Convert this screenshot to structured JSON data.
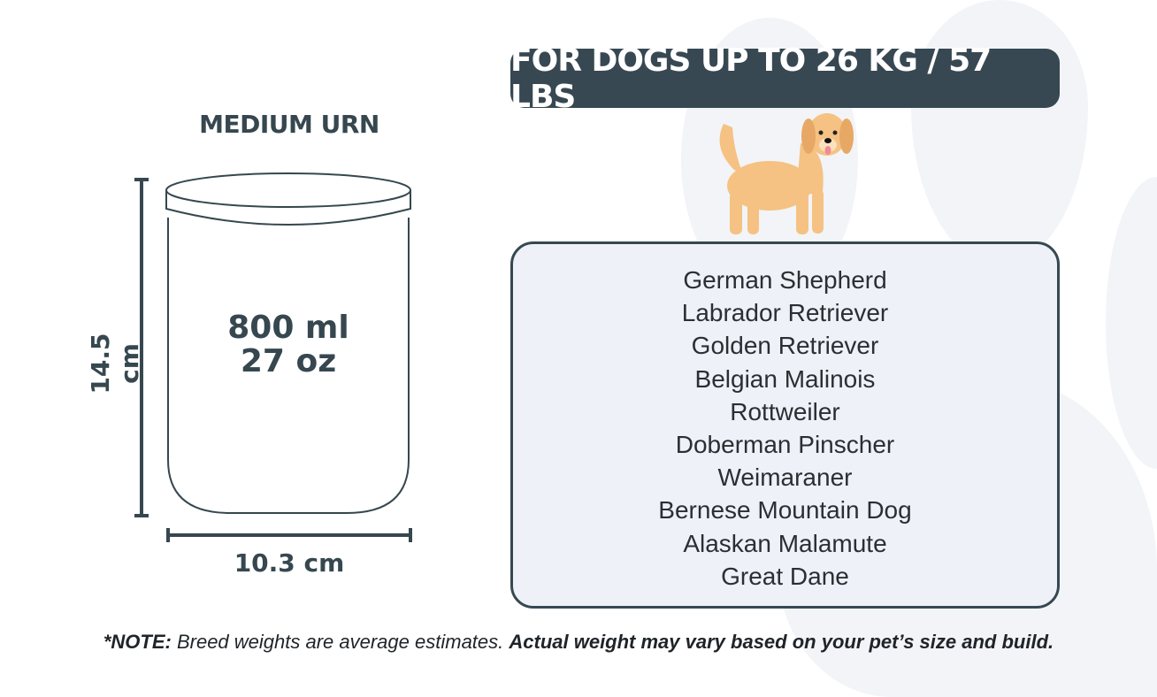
{
  "urn": {
    "title": "MEDIUM URN",
    "capacity_ml": "800 ml",
    "capacity_oz": "27 oz",
    "height": "14.5 cm",
    "width": "10.3 cm"
  },
  "header": {
    "label": "FOR DOGS UP TO 26 KG / 57 LBS"
  },
  "dog_icon": "golden-retriever-illustration",
  "breeds": [
    "German Shepherd",
    "Labrador Retriever",
    "Golden Retriever",
    "Belgian Malinois",
    "Rottweiler",
    "Doberman Pinscher",
    "Weimaraner",
    "Bernese Mountain Dog",
    "Alaskan Malamute",
    "Great Dane"
  ],
  "note": {
    "prefix": "*NOTE:",
    "text": " Breed weights are average estimates. ",
    "emphasis": "Actual weight may vary based on your pet’s size and build."
  },
  "colors": {
    "dark": "#374852",
    "box_bg": "#eef2f8",
    "paw_bg": "#f2f4f7",
    "dog": "#f5c283"
  }
}
